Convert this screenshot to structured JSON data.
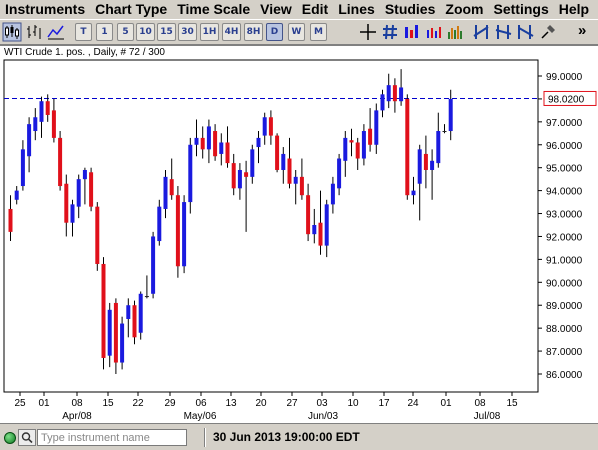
{
  "menu": [
    "Instruments",
    "Chart Type",
    "Time Scale",
    "View",
    "Edit",
    "Lines",
    "Studies",
    "Zoom",
    "Settings",
    "Help"
  ],
  "toolbar": {
    "timescale_buttons": [
      "T",
      "1",
      "5",
      "10",
      "15",
      "30",
      "1H",
      "4H",
      "8H",
      "D",
      "W",
      "M"
    ],
    "active_timescale": "D",
    "overflow_label": "»"
  },
  "chart": {
    "title": "WTI Crude 1. pos. , Daily, # 72 / 300",
    "current_price_label": "98.0200",
    "colors": {
      "up": "#1a1adf",
      "down": "#e0101a",
      "doji": "#222222",
      "price_line": "#0000cc"
    }
  },
  "chart_data": {
    "type": "candlestick",
    "price_ticks": [
      "99.0000",
      "98.0000",
      "97.0000",
      "96.0000",
      "95.0000",
      "94.0000",
      "93.0000",
      "92.0000",
      "91.0000",
      "90.0000",
      "89.0000",
      "88.0000",
      "87.0000",
      "86.0000"
    ],
    "ylim": [
      85.6,
      99.6
    ],
    "current_price": 98.02,
    "x_tick_labels": [
      "25",
      "01",
      "08",
      "15",
      "22",
      "29",
      "06",
      "13",
      "20",
      "27",
      "03",
      "10",
      "17",
      "24",
      "01",
      "08",
      "15"
    ],
    "month_labels": [
      "Apr/08",
      "May/06",
      "Jun/03",
      "Jul/08"
    ],
    "candles": [
      {
        "o": 93.2,
        "h": 93.8,
        "l": 91.8,
        "c": 92.2
      },
      {
        "o": 93.6,
        "h": 94.2,
        "l": 93.4,
        "c": 94.0
      },
      {
        "o": 94.2,
        "h": 96.2,
        "l": 94.0,
        "c": 95.8
      },
      {
        "o": 95.5,
        "h": 97.2,
        "l": 94.8,
        "c": 96.9
      },
      {
        "o": 96.6,
        "h": 97.6,
        "l": 96.2,
        "c": 97.2
      },
      {
        "o": 97.0,
        "h": 98.1,
        "l": 96.3,
        "c": 97.9
      },
      {
        "o": 97.9,
        "h": 98.2,
        "l": 97.0,
        "c": 97.3
      },
      {
        "o": 97.5,
        "h": 98.0,
        "l": 96.1,
        "c": 96.3
      },
      {
        "o": 96.3,
        "h": 96.6,
        "l": 94.0,
        "c": 94.2
      },
      {
        "o": 94.3,
        "h": 94.7,
        "l": 92.0,
        "c": 92.6
      },
      {
        "o": 92.6,
        "h": 93.6,
        "l": 92.0,
        "c": 93.4
      },
      {
        "o": 93.3,
        "h": 94.7,
        "l": 92.8,
        "c": 94.5
      },
      {
        "o": 94.5,
        "h": 95.0,
        "l": 93.4,
        "c": 94.9
      },
      {
        "o": 94.8,
        "h": 95.0,
        "l": 93.1,
        "c": 93.3
      },
      {
        "o": 93.3,
        "h": 93.5,
        "l": 90.5,
        "c": 90.8
      },
      {
        "o": 90.8,
        "h": 91.1,
        "l": 86.2,
        "c": 86.7
      },
      {
        "o": 86.8,
        "h": 89.1,
        "l": 86.3,
        "c": 88.8
      },
      {
        "o": 89.1,
        "h": 89.3,
        "l": 86.0,
        "c": 86.5
      },
      {
        "o": 86.5,
        "h": 88.5,
        "l": 86.2,
        "c": 88.2
      },
      {
        "o": 88.4,
        "h": 89.3,
        "l": 87.6,
        "c": 89.0
      },
      {
        "o": 89.0,
        "h": 89.2,
        "l": 87.3,
        "c": 87.6
      },
      {
        "o": 87.8,
        "h": 89.6,
        "l": 87.5,
        "c": 89.5
      },
      {
        "o": 89.4,
        "h": 90.3,
        "l": 89.3,
        "c": 89.4
      },
      {
        "o": 89.5,
        "h": 92.2,
        "l": 89.3,
        "c": 92.0
      },
      {
        "o": 91.8,
        "h": 93.6,
        "l": 91.6,
        "c": 93.3
      },
      {
        "o": 93.2,
        "h": 94.9,
        "l": 92.8,
        "c": 94.6
      },
      {
        "o": 94.5,
        "h": 95.4,
        "l": 93.6,
        "c": 93.8
      },
      {
        "o": 93.8,
        "h": 94.2,
        "l": 90.2,
        "c": 90.7
      },
      {
        "o": 90.7,
        "h": 93.8,
        "l": 90.4,
        "c": 93.5
      },
      {
        "o": 93.5,
        "h": 96.3,
        "l": 93.0,
        "c": 96.0
      },
      {
        "o": 96.0,
        "h": 97.1,
        "l": 95.5,
        "c": 96.3
      },
      {
        "o": 96.3,
        "h": 96.8,
        "l": 95.4,
        "c": 95.8
      },
      {
        "o": 95.8,
        "h": 97.1,
        "l": 95.2,
        "c": 96.8
      },
      {
        "o": 96.6,
        "h": 96.9,
        "l": 95.3,
        "c": 95.5
      },
      {
        "o": 95.6,
        "h": 96.5,
        "l": 95.1,
        "c": 96.1
      },
      {
        "o": 96.1,
        "h": 96.8,
        "l": 95.0,
        "c": 95.2
      },
      {
        "o": 95.2,
        "h": 95.6,
        "l": 93.8,
        "c": 94.1
      },
      {
        "o": 94.1,
        "h": 95.2,
        "l": 93.6,
        "c": 94.9
      },
      {
        "o": 94.8,
        "h": 95.3,
        "l": 92.2,
        "c": 94.6
      },
      {
        "o": 94.6,
        "h": 96.0,
        "l": 94.3,
        "c": 95.8
      },
      {
        "o": 95.9,
        "h": 96.6,
        "l": 95.2,
        "c": 96.3
      },
      {
        "o": 96.4,
        "h": 97.4,
        "l": 96.0,
        "c": 97.2
      },
      {
        "o": 97.2,
        "h": 97.5,
        "l": 96.0,
        "c": 96.4
      },
      {
        "o": 96.4,
        "h": 96.5,
        "l": 94.8,
        "c": 94.9
      },
      {
        "o": 94.9,
        "h": 95.9,
        "l": 94.3,
        "c": 95.6
      },
      {
        "o": 95.4,
        "h": 96.3,
        "l": 94.1,
        "c": 94.3
      },
      {
        "o": 94.3,
        "h": 94.9,
        "l": 93.4,
        "c": 94.6
      },
      {
        "o": 94.6,
        "h": 95.4,
        "l": 93.6,
        "c": 93.8
      },
      {
        "o": 93.8,
        "h": 94.3,
        "l": 91.8,
        "c": 92.1
      },
      {
        "o": 92.1,
        "h": 93.2,
        "l": 91.7,
        "c": 92.5
      },
      {
        "o": 92.6,
        "h": 94.0,
        "l": 91.2,
        "c": 91.6
      },
      {
        "o": 91.6,
        "h": 93.6,
        "l": 91.1,
        "c": 93.4
      },
      {
        "o": 93.4,
        "h": 94.6,
        "l": 93.0,
        "c": 94.3
      },
      {
        "o": 94.1,
        "h": 95.6,
        "l": 93.8,
        "c": 95.4
      },
      {
        "o": 95.3,
        "h": 96.6,
        "l": 94.6,
        "c": 96.3
      },
      {
        "o": 96.2,
        "h": 96.7,
        "l": 95.5,
        "c": 96.1
      },
      {
        "o": 96.1,
        "h": 96.3,
        "l": 94.9,
        "c": 95.4
      },
      {
        "o": 95.4,
        "h": 96.9,
        "l": 95.1,
        "c": 96.6
      },
      {
        "o": 96.7,
        "h": 97.6,
        "l": 95.7,
        "c": 96.0
      },
      {
        "o": 96.0,
        "h": 97.8,
        "l": 95.6,
        "c": 97.5
      },
      {
        "o": 97.5,
        "h": 98.4,
        "l": 97.2,
        "c": 98.2
      },
      {
        "o": 97.9,
        "h": 99.1,
        "l": 97.6,
        "c": 98.6
      },
      {
        "o": 98.6,
        "h": 98.9,
        "l": 97.4,
        "c": 97.9
      },
      {
        "o": 97.9,
        "h": 99.3,
        "l": 97.7,
        "c": 98.5
      },
      {
        "o": 98.0,
        "h": 98.2,
        "l": 93.6,
        "c": 93.8
      },
      {
        "o": 93.8,
        "h": 94.6,
        "l": 93.4,
        "c": 94.0
      },
      {
        "o": 94.3,
        "h": 96.0,
        "l": 92.7,
        "c": 95.8
      },
      {
        "o": 95.6,
        "h": 96.4,
        "l": 94.1,
        "c": 94.9
      },
      {
        "o": 94.9,
        "h": 95.8,
        "l": 93.6,
        "c": 95.3
      },
      {
        "o": 95.2,
        "h": 97.4,
        "l": 95.0,
        "c": 96.6
      },
      {
        "o": 96.6,
        "h": 96.9,
        "l": 96.5,
        "c": 96.6
      },
      {
        "o": 96.6,
        "h": 98.4,
        "l": 96.2,
        "c": 98.0
      }
    ]
  },
  "status": {
    "instrument_placeholder": "Type instrument name",
    "datetime": "30 Jun 2013 19:00:00 EDT"
  }
}
